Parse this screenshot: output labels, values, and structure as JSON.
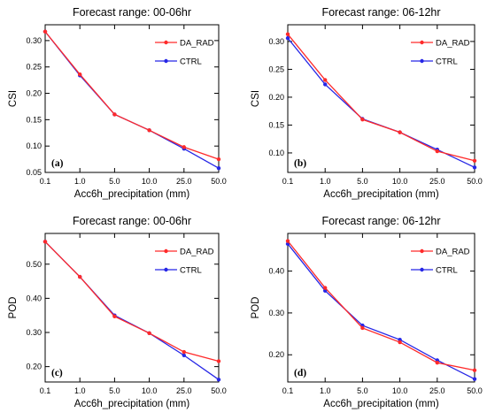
{
  "chart_data": [
    {
      "type": "line",
      "title": "Forecast range: 00-06hr",
      "xlabel": "Acc6h_precipitation (mm)",
      "ylabel": "CSI",
      "categories": [
        "0.1",
        "1.0",
        "5.0",
        "10.0",
        "25.0",
        "50.0"
      ],
      "ylim": [
        0.05,
        0.33
      ],
      "yticks": [
        "0.05",
        "0.10",
        "0.15",
        "0.20",
        "0.25",
        "0.30"
      ],
      "panel_label": "(a)",
      "legend_position": "top-right",
      "grid": false,
      "series": [
        {
          "name": "DA_RAD",
          "color": "#ff2a2a",
          "values": [
            0.317,
            0.236,
            0.16,
            0.13,
            0.098,
            0.075
          ]
        },
        {
          "name": "CTRL",
          "color": "#2626e6",
          "values": [
            0.317,
            0.234,
            0.16,
            0.13,
            0.095,
            0.058
          ]
        }
      ]
    },
    {
      "type": "line",
      "title": "Forecast range: 06-12hr",
      "xlabel": "Acc6h_precipitation (mm)",
      "ylabel": "CSI",
      "categories": [
        "0.1",
        "1.0",
        "5.0",
        "10.0",
        "25.0",
        "50.0"
      ],
      "ylim": [
        0.065,
        0.33
      ],
      "yticks": [
        "0.10",
        "0.15",
        "0.20",
        "0.25",
        "0.30"
      ],
      "panel_label": "(b)",
      "legend_position": "top-right",
      "grid": false,
      "series": [
        {
          "name": "DA_RAD",
          "color": "#ff2a2a",
          "values": [
            0.313,
            0.231,
            0.16,
            0.137,
            0.103,
            0.086
          ]
        },
        {
          "name": "CTRL",
          "color": "#2626e6",
          "values": [
            0.306,
            0.223,
            0.161,
            0.137,
            0.106,
            0.074
          ]
        }
      ]
    },
    {
      "type": "line",
      "title": "Forecast range: 00-06hr",
      "xlabel": "Acc6h_precipitation (mm)",
      "ylabel": "POD",
      "categories": [
        "0.1",
        "1.0",
        "5.0",
        "10.0",
        "25.0",
        "50.0"
      ],
      "ylim": [
        0.155,
        0.59
      ],
      "yticks": [
        "0.20",
        "0.30",
        "0.40",
        "0.50"
      ],
      "panel_label": "(c)",
      "legend_position": "top-right",
      "grid": false,
      "series": [
        {
          "name": "DA_RAD",
          "color": "#ff2a2a",
          "values": [
            0.566,
            0.463,
            0.347,
            0.298,
            0.243,
            0.216
          ]
        },
        {
          "name": "CTRL",
          "color": "#2626e6",
          "values": [
            0.566,
            0.463,
            0.35,
            0.298,
            0.233,
            0.162
          ]
        }
      ]
    },
    {
      "type": "line",
      "title": "Forecast range: 06-12hr",
      "xlabel": "Acc6h_precipitation (mm)",
      "ylabel": "POD",
      "categories": [
        "0.1",
        "1.0",
        "5.0",
        "10.0",
        "25.0",
        "50.0"
      ],
      "ylim": [
        0.135,
        0.49
      ],
      "yticks": [
        "0.20",
        "0.30",
        "0.40"
      ],
      "panel_label": "(d)",
      "legend_position": "top-right",
      "grid": false,
      "series": [
        {
          "name": "DA_RAD",
          "color": "#ff2a2a",
          "values": [
            0.472,
            0.36,
            0.264,
            0.23,
            0.181,
            0.163
          ]
        },
        {
          "name": "CTRL",
          "color": "#2626e6",
          "values": [
            0.465,
            0.353,
            0.27,
            0.236,
            0.187,
            0.142
          ]
        }
      ]
    }
  ]
}
